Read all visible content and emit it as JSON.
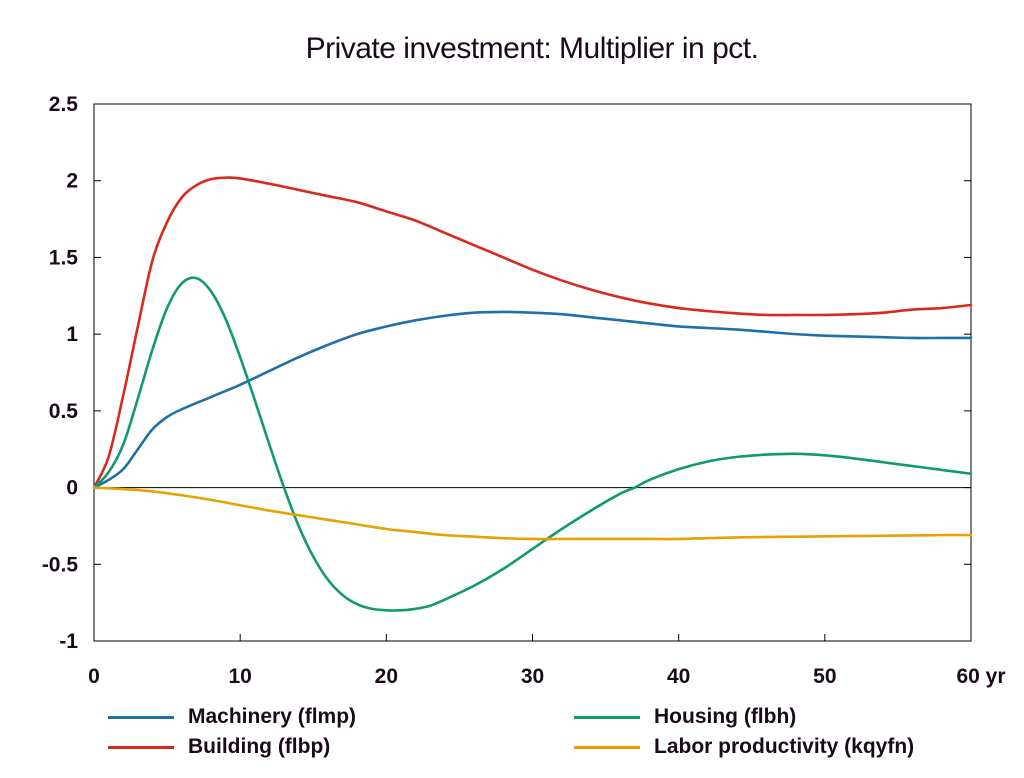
{
  "chart_data": {
    "type": "line",
    "title": "Private investment: Multiplier in pct.",
    "xlabel": "",
    "ylabel": "",
    "xlim": [
      0,
      60
    ],
    "ylim": [
      -1,
      2.5
    ],
    "x_ticks": [
      "0",
      "10",
      "20",
      "30",
      "40",
      "50",
      "60 yr"
    ],
    "y_ticks": [
      "2.5",
      "2",
      "1.5",
      "1",
      "0.5",
      "0",
      "-0.5",
      "-1"
    ],
    "grid": false,
    "legend_position": "bottom",
    "series": [
      {
        "name": "Machinery (flmp)",
        "color": "#1f6fa8",
        "points": [
          [
            0,
            0
          ],
          [
            1,
            0.05
          ],
          [
            2,
            0.12
          ],
          [
            3,
            0.25
          ],
          [
            4,
            0.38
          ],
          [
            5,
            0.46
          ],
          [
            6,
            0.51
          ],
          [
            8,
            0.59
          ],
          [
            10,
            0.67
          ],
          [
            12,
            0.76
          ],
          [
            14,
            0.85
          ],
          [
            16,
            0.93
          ],
          [
            18,
            1.0
          ],
          [
            20,
            1.05
          ],
          [
            22,
            1.09
          ],
          [
            24,
            1.12
          ],
          [
            26,
            1.14
          ],
          [
            28,
            1.145
          ],
          [
            30,
            1.14
          ],
          [
            32,
            1.13
          ],
          [
            34,
            1.11
          ],
          [
            36,
            1.09
          ],
          [
            38,
            1.07
          ],
          [
            40,
            1.05
          ],
          [
            42,
            1.04
          ],
          [
            44,
            1.03
          ],
          [
            46,
            1.015
          ],
          [
            48,
            1.0
          ],
          [
            50,
            0.99
          ],
          [
            52,
            0.985
          ],
          [
            54,
            0.98
          ],
          [
            56,
            0.975
          ],
          [
            58,
            0.975
          ],
          [
            60,
            0.975
          ]
        ]
      },
      {
        "name": "Building (flbp)",
        "color": "#d9291c",
        "points": [
          [
            0,
            0
          ],
          [
            1,
            0.2
          ],
          [
            2,
            0.6
          ],
          [
            3,
            1.05
          ],
          [
            4,
            1.48
          ],
          [
            5,
            1.73
          ],
          [
            6,
            1.89
          ],
          [
            7,
            1.97
          ],
          [
            8,
            2.01
          ],
          [
            9,
            2.02
          ],
          [
            10,
            2.015
          ],
          [
            12,
            1.98
          ],
          [
            14,
            1.94
          ],
          [
            16,
            1.9
          ],
          [
            18,
            1.86
          ],
          [
            20,
            1.8
          ],
          [
            22,
            1.74
          ],
          [
            24,
            1.66
          ],
          [
            26,
            1.58
          ],
          [
            28,
            1.5
          ],
          [
            30,
            1.42
          ],
          [
            32,
            1.35
          ],
          [
            34,
            1.29
          ],
          [
            36,
            1.24
          ],
          [
            38,
            1.2
          ],
          [
            40,
            1.17
          ],
          [
            42,
            1.15
          ],
          [
            44,
            1.135
          ],
          [
            46,
            1.125
          ],
          [
            48,
            1.125
          ],
          [
            50,
            1.125
          ],
          [
            52,
            1.13
          ],
          [
            54,
            1.14
          ],
          [
            56,
            1.16
          ],
          [
            58,
            1.17
          ],
          [
            60,
            1.19
          ]
        ]
      },
      {
        "name": "Housing (flbh)",
        "color": "#109972",
        "points": [
          [
            0,
            0
          ],
          [
            1,
            0.1
          ],
          [
            2,
            0.28
          ],
          [
            3,
            0.58
          ],
          [
            4,
            0.9
          ],
          [
            5,
            1.17
          ],
          [
            6,
            1.33
          ],
          [
            7,
            1.365
          ],
          [
            8,
            1.28
          ],
          [
            9,
            1.1
          ],
          [
            10,
            0.85
          ],
          [
            11,
            0.57
          ],
          [
            12,
            0.28
          ],
          [
            13,
            0.0
          ],
          [
            14,
            -0.25
          ],
          [
            15,
            -0.45
          ],
          [
            16,
            -0.6
          ],
          [
            17,
            -0.7
          ],
          [
            18,
            -0.76
          ],
          [
            19,
            -0.79
          ],
          [
            20,
            -0.8
          ],
          [
            21,
            -0.8
          ],
          [
            22,
            -0.79
          ],
          [
            23,
            -0.77
          ],
          [
            24,
            -0.73
          ],
          [
            26,
            -0.64
          ],
          [
            28,
            -0.53
          ],
          [
            30,
            -0.4
          ],
          [
            32,
            -0.27
          ],
          [
            34,
            -0.15
          ],
          [
            36,
            -0.04
          ],
          [
            37,
            0.0
          ],
          [
            38,
            0.05
          ],
          [
            40,
            0.12
          ],
          [
            42,
            0.17
          ],
          [
            44,
            0.2
          ],
          [
            46,
            0.215
          ],
          [
            48,
            0.22
          ],
          [
            50,
            0.21
          ],
          [
            52,
            0.19
          ],
          [
            54,
            0.165
          ],
          [
            56,
            0.14
          ],
          [
            58,
            0.115
          ],
          [
            60,
            0.09
          ]
        ]
      },
      {
        "name": "Labor productivity (kqyfn)",
        "color": "#e5a200",
        "points": [
          [
            0,
            0
          ],
          [
            2,
            -0.01
          ],
          [
            4,
            -0.025
          ],
          [
            6,
            -0.05
          ],
          [
            8,
            -0.08
          ],
          [
            10,
            -0.115
          ],
          [
            12,
            -0.15
          ],
          [
            14,
            -0.18
          ],
          [
            16,
            -0.21
          ],
          [
            18,
            -0.24
          ],
          [
            20,
            -0.27
          ],
          [
            22,
            -0.29
          ],
          [
            24,
            -0.31
          ],
          [
            26,
            -0.32
          ],
          [
            28,
            -0.33
          ],
          [
            30,
            -0.335
          ],
          [
            32,
            -0.335
          ],
          [
            34,
            -0.335
          ],
          [
            36,
            -0.335
          ],
          [
            38,
            -0.335
          ],
          [
            40,
            -0.335
          ],
          [
            42,
            -0.33
          ],
          [
            44,
            -0.325
          ],
          [
            46,
            -0.322
          ],
          [
            48,
            -0.32
          ],
          [
            50,
            -0.318
          ],
          [
            52,
            -0.316
          ],
          [
            54,
            -0.314
          ],
          [
            56,
            -0.312
          ],
          [
            58,
            -0.31
          ],
          [
            60,
            -0.31
          ]
        ]
      }
    ]
  }
}
